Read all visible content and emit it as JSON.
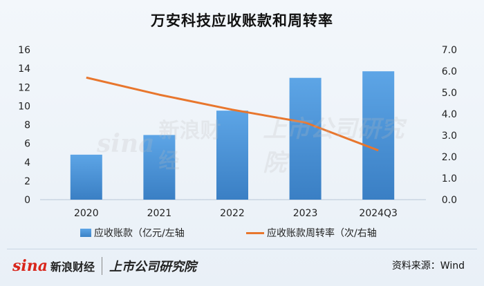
{
  "title": "万安科技应收账款和周转率",
  "chart_data": {
    "type": "bar",
    "title": "万安科技应收账款和周转率",
    "categories": [
      "2020",
      "2021",
      "2022",
      "2023",
      "2024Q3"
    ],
    "series": [
      {
        "name": "应收账款（亿元/左轴",
        "type": "bar",
        "axis": "left",
        "values": [
          4.8,
          6.9,
          9.5,
          13.0,
          13.7
        ]
      },
      {
        "name": "应收账款周转率（次/右轴",
        "type": "line",
        "axis": "right",
        "values": [
          5.7,
          4.9,
          4.2,
          3.6,
          2.3
        ]
      }
    ],
    "left_axis": {
      "ylim": [
        0,
        16
      ],
      "ticks": [
        "0",
        "2",
        "4",
        "6",
        "8",
        "10",
        "12",
        "14",
        "16"
      ]
    },
    "right_axis": {
      "ylim": [
        0,
        7
      ],
      "ticks": [
        "0.0",
        "1.0",
        "2.0",
        "3.0",
        "4.0",
        "5.0",
        "6.0",
        "7.0"
      ]
    },
    "grid": false,
    "legend_position": "bottom",
    "colors": {
      "bar_top": "#5da5e6",
      "bar_bottom": "#3a7fc4",
      "line": "#e8762d"
    }
  },
  "legend": {
    "bar_label": "应收账款（亿元/左轴",
    "line_label": "应收账款周转率（次/右轴"
  },
  "footer": {
    "brand_en": "sina",
    "brand_cn": "新浪财经",
    "partner": "上市公司研究院",
    "source": "资料来源：Wind"
  },
  "watermark": {
    "brand_en": "sina",
    "brand_cn": "新浪财经",
    "partner": "上市公司研究院"
  }
}
